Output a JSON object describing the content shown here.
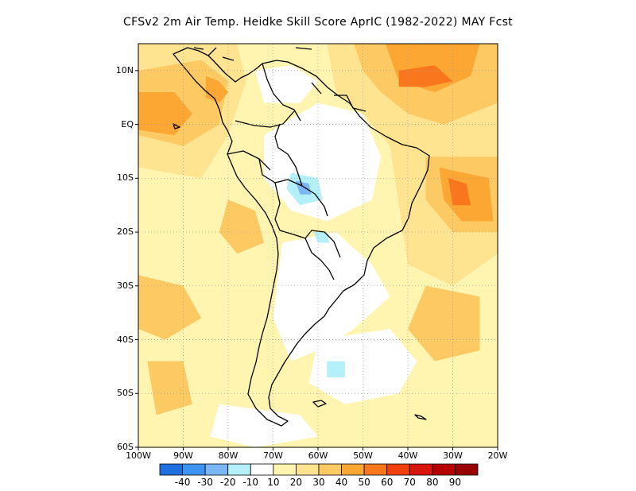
{
  "title": "CFSv2  2m Air Temp. Heidke Skill Score AprIC (1982-2022) MAY Fcst",
  "map": {
    "lat_ticks": [
      "10N",
      "EQ",
      "10S",
      "20S",
      "30S",
      "40S",
      "50S",
      "60S"
    ],
    "lon_ticks": [
      "100W",
      "90W",
      "80W",
      "70W",
      "60W",
      "50W",
      "40W",
      "30W",
      "20W"
    ],
    "extent": {
      "lon": [
        -100,
        -20
      ],
      "lat": [
        -60,
        15
      ]
    },
    "grid": "dotted"
  },
  "colorbar": {
    "labels": [
      "-40",
      "-30",
      "-20",
      "-10",
      "10",
      "20",
      "30",
      "40",
      "50",
      "60",
      "70",
      "80",
      "90"
    ],
    "colors": [
      "#1e6fe0",
      "#3d94f5",
      "#7bb6f7",
      "#b4f0fa",
      "#ffffff",
      "#fff5b0",
      "#fee491",
      "#fdc962",
      "#fca634",
      "#f9761c",
      "#f13f0e",
      "#d8150a",
      "#b50000",
      "#990000"
    ]
  },
  "field_colors": {
    "bg": "#fff5b0",
    "s2": "#fee491",
    "s3": "#fdc962",
    "s4": "#fca634",
    "s5": "#f9761c",
    "neg": "#b4f0fa",
    "neg2": "#7bb6f7",
    "zero": "#ffffff"
  }
}
